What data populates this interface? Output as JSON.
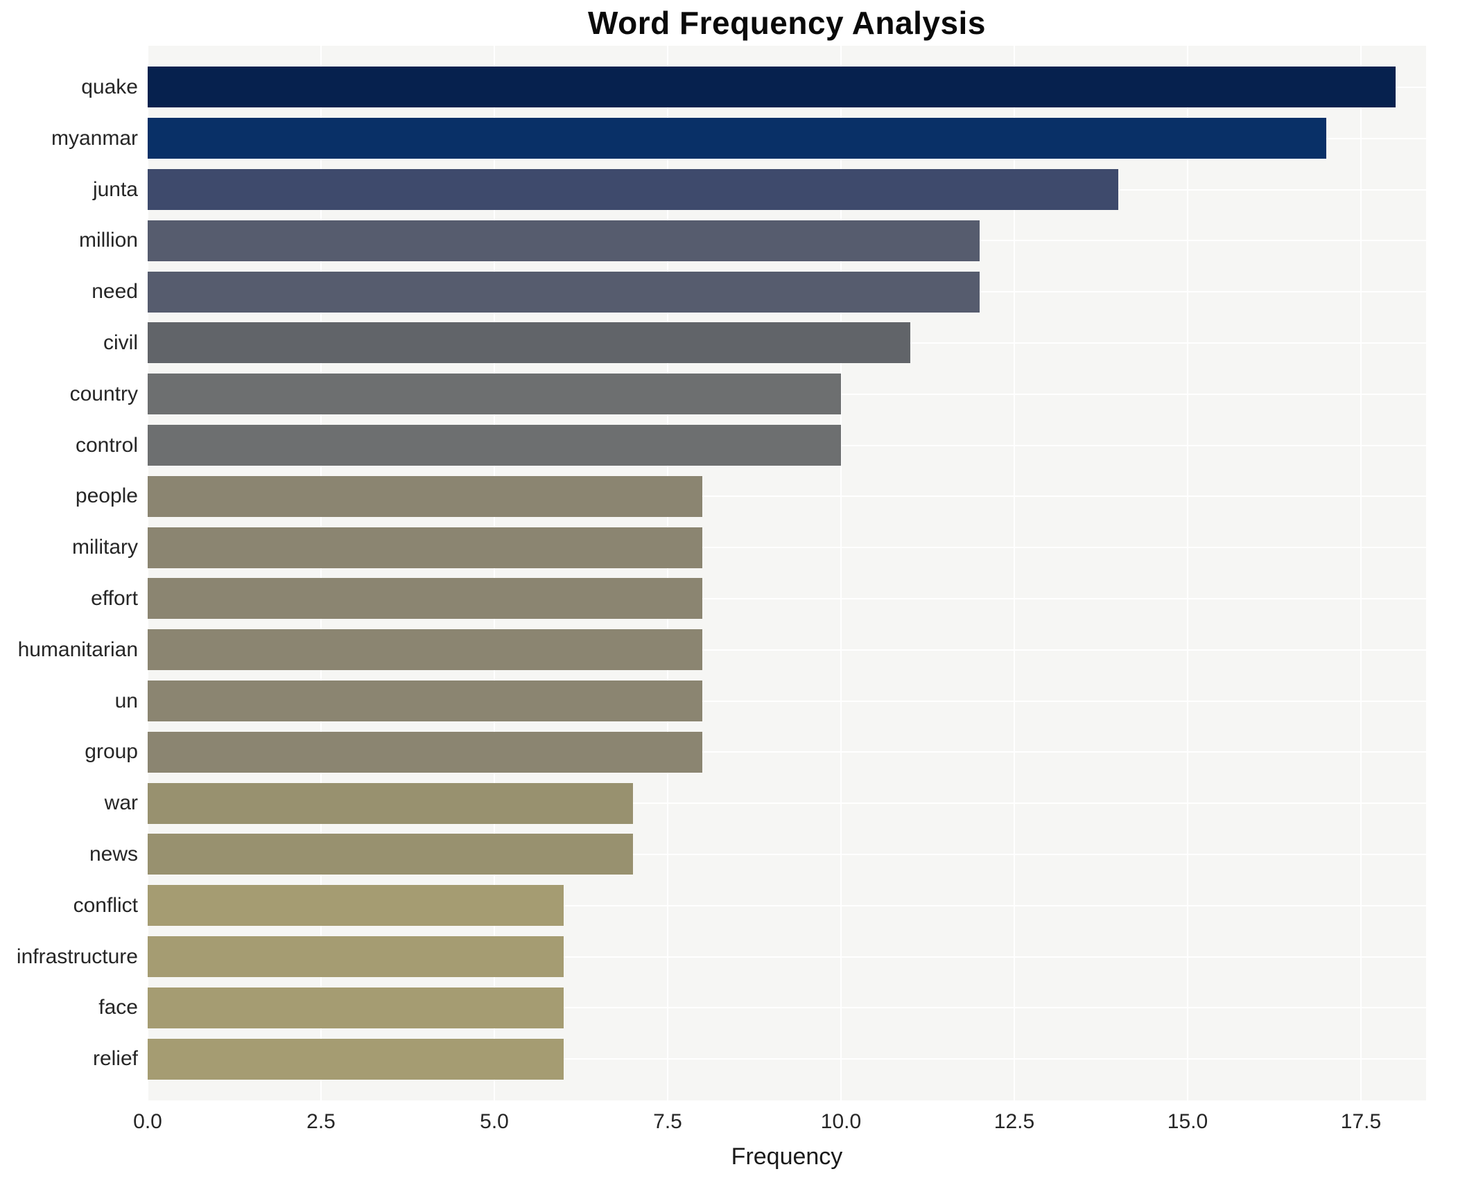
{
  "chart_data": {
    "type": "bar",
    "orientation": "horizontal",
    "title": "Word Frequency Analysis",
    "xlabel": "Frequency",
    "ylabel": "",
    "categories": [
      "quake",
      "myanmar",
      "junta",
      "million",
      "need",
      "civil",
      "country",
      "control",
      "people",
      "military",
      "effort",
      "humanitarian",
      "un",
      "group",
      "war",
      "news",
      "conflict",
      "infrastructure",
      "face",
      "relief"
    ],
    "values": [
      18,
      17,
      14,
      12,
      12,
      11,
      10,
      10,
      8,
      8,
      8,
      8,
      8,
      8,
      7,
      7,
      6,
      6,
      6,
      6
    ],
    "bar_colors": [
      "#06214e",
      "#093067",
      "#3e4a6c",
      "#565c6e",
      "#565c6e",
      "#616469",
      "#6d6f70",
      "#6d6f70",
      "#8b8571",
      "#8b8571",
      "#8b8571",
      "#8b8571",
      "#8b8571",
      "#8b8571",
      "#98916f",
      "#98916f",
      "#a59c72",
      "#a59c72",
      "#a59c72",
      "#a59c72"
    ],
    "xlim": [
      0,
      18.44
    ],
    "xticks": [
      0,
      2.5,
      5,
      7.5,
      10,
      12.5,
      15,
      17.5
    ],
    "xtick_labels": [
      "0.0",
      "2.5",
      "5.0",
      "7.5",
      "10.0",
      "12.5",
      "15.0",
      "17.5"
    ],
    "grid": true,
    "grid_color": "#ffffff",
    "plot_bg": "#f6f6f4",
    "legend": "none"
  }
}
